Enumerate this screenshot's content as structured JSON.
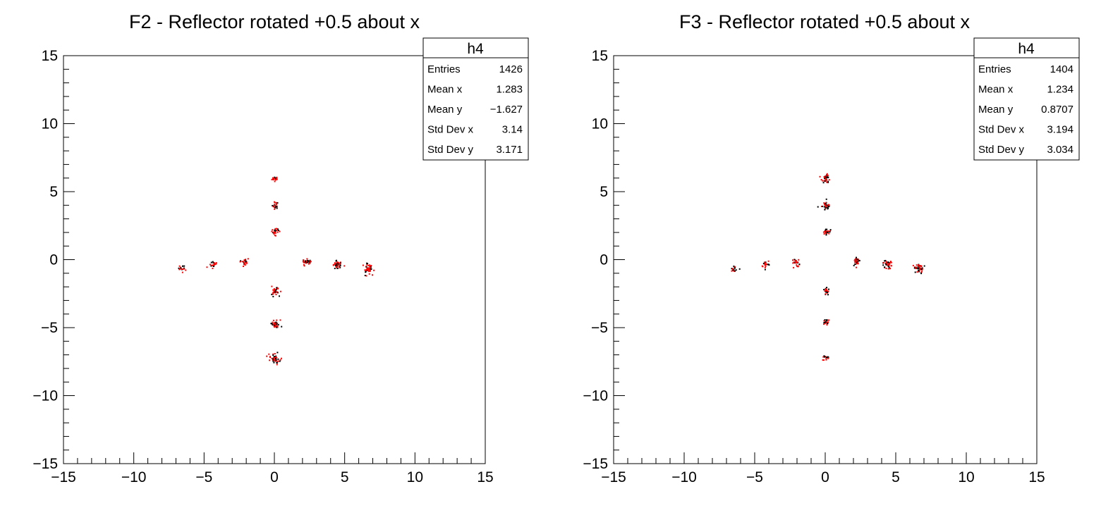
{
  "chart_data": [
    {
      "type": "scatter",
      "title": "F2 - Reflector rotated +0.5 about x",
      "xlim": [
        -15,
        15
      ],
      "ylim": [
        -15,
        15
      ],
      "xticks": [
        -15,
        -10,
        -5,
        0,
        5,
        10,
        15
      ],
      "yticks": [
        -15,
        -10,
        -5,
        0,
        5,
        10,
        15
      ],
      "marker_color": "#ff0000",
      "outline_color": "#000000",
      "clusters": [
        {
          "x": 0.0,
          "y": 6.0,
          "r": 0.22,
          "n": 16
        },
        {
          "x": 0.0,
          "y": 4.05,
          "r": 0.24,
          "n": 20
        },
        {
          "x": 0.0,
          "y": 2.1,
          "r": 0.26,
          "n": 26
        },
        {
          "x": 0.0,
          "y": -2.3,
          "r": 0.3,
          "n": 34
        },
        {
          "x": 0.0,
          "y": -4.7,
          "r": 0.32,
          "n": 40
        },
        {
          "x": 0.0,
          "y": -7.25,
          "r": 0.34,
          "n": 44
        },
        {
          "x": -6.6,
          "y": -0.55,
          "r": 0.28,
          "n": 16
        },
        {
          "x": -4.4,
          "y": -0.3,
          "r": 0.26,
          "n": 20
        },
        {
          "x": -2.2,
          "y": -0.1,
          "r": 0.26,
          "n": 24
        },
        {
          "x": 2.2,
          "y": -0.15,
          "r": 0.3,
          "n": 32
        },
        {
          "x": 4.4,
          "y": -0.35,
          "r": 0.32,
          "n": 40
        },
        {
          "x": 6.6,
          "y": -0.6,
          "r": 0.36,
          "n": 46
        }
      ],
      "stats": {
        "name": "h4",
        "rows": [
          {
            "label": "Entries",
            "value": "1426"
          },
          {
            "label": "Mean x",
            "value": "1.283"
          },
          {
            "label": "Mean y",
            "value": "−1.627"
          },
          {
            "label": "Std Dev x",
            "value": "3.14"
          },
          {
            "label": "Std Dev y",
            "value": "3.171"
          }
        ]
      }
    },
    {
      "type": "scatter",
      "title": "F3 - Reflector rotated +0.5 about x",
      "xlim": [
        -15,
        15
      ],
      "ylim": [
        -15,
        15
      ],
      "xticks": [
        -15,
        -10,
        -5,
        0,
        5,
        10,
        15
      ],
      "yticks": [
        -15,
        -10,
        -5,
        0,
        5,
        10,
        15
      ],
      "marker_color": "#ff0000",
      "outline_color": "#000000",
      "clusters": [
        {
          "x": 0.0,
          "y": 6.0,
          "r": 0.3,
          "n": 40
        },
        {
          "x": 0.0,
          "y": 4.05,
          "r": 0.28,
          "n": 36
        },
        {
          "x": 0.0,
          "y": 2.1,
          "r": 0.26,
          "n": 28
        },
        {
          "x": 0.0,
          "y": -2.25,
          "r": 0.26,
          "n": 22
        },
        {
          "x": 0.0,
          "y": -4.6,
          "r": 0.26,
          "n": 18
        },
        {
          "x": 0.0,
          "y": -7.2,
          "r": 0.26,
          "n": 14
        },
        {
          "x": -6.5,
          "y": -0.6,
          "r": 0.28,
          "n": 16
        },
        {
          "x": -4.3,
          "y": -0.3,
          "r": 0.26,
          "n": 20
        },
        {
          "x": -2.15,
          "y": -0.1,
          "r": 0.26,
          "n": 24
        },
        {
          "x": 2.2,
          "y": -0.1,
          "r": 0.3,
          "n": 32
        },
        {
          "x": 4.35,
          "y": -0.3,
          "r": 0.32,
          "n": 38
        },
        {
          "x": 6.6,
          "y": -0.6,
          "r": 0.36,
          "n": 46
        }
      ],
      "stats": {
        "name": "h4",
        "rows": [
          {
            "label": "Entries",
            "value": "1404"
          },
          {
            "label": "Mean x",
            "value": "1.234"
          },
          {
            "label": "Mean y",
            "value": "0.8707"
          },
          {
            "label": "Std Dev x",
            "value": "3.194"
          },
          {
            "label": "Std Dev y",
            "value": "3.034"
          }
        ]
      }
    }
  ]
}
